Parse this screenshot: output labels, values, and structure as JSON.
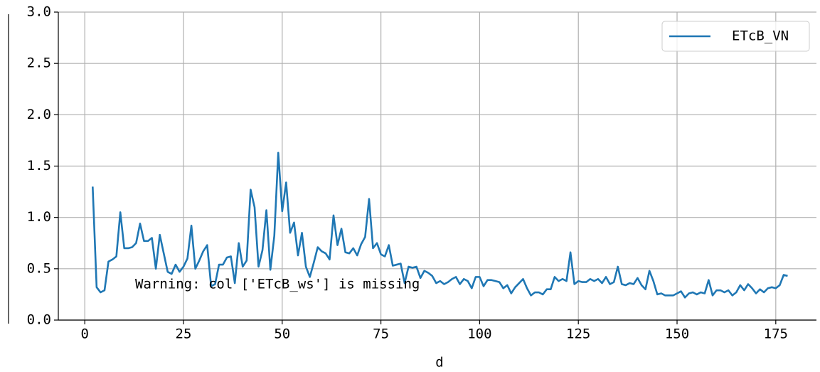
{
  "chart_data": {
    "type": "line",
    "xlabel": "d",
    "annotation": "Warning: col ['ETcB_ws'] is missing",
    "x": [
      2,
      3,
      4,
      5,
      6,
      7,
      8,
      9,
      10,
      11,
      12,
      13,
      14,
      15,
      16,
      17,
      18,
      19,
      20,
      21,
      22,
      23,
      24,
      25,
      26,
      27,
      28,
      29,
      30,
      31,
      32,
      33,
      34,
      35,
      36,
      37,
      38,
      39,
      40,
      41,
      42,
      43,
      44,
      45,
      46,
      47,
      48,
      49,
      50,
      51,
      52,
      53,
      54,
      55,
      56,
      57,
      58,
      59,
      60,
      61,
      62,
      63,
      64,
      65,
      66,
      67,
      68,
      69,
      70,
      71,
      72,
      73,
      74,
      75,
      76,
      77,
      78,
      79,
      80,
      81,
      82,
      83,
      84,
      85,
      86,
      87,
      88,
      89,
      90,
      91,
      92,
      93,
      94,
      95,
      96,
      97,
      98,
      99,
      100,
      101,
      102,
      103,
      104,
      105,
      106,
      107,
      108,
      109,
      110,
      111,
      112,
      113,
      114,
      115,
      116,
      117,
      118,
      119,
      120,
      121,
      122,
      123,
      124,
      125,
      126,
      127,
      128,
      129,
      130,
      131,
      132,
      133,
      134,
      135,
      136,
      137,
      138,
      139,
      140,
      141,
      142,
      143,
      144,
      145,
      146,
      147,
      148,
      149,
      150,
      151,
      152,
      153,
      154,
      155,
      156,
      157,
      158,
      159,
      160,
      161,
      162,
      163,
      164,
      165,
      166,
      167,
      168,
      169,
      170,
      171,
      172,
      173,
      174,
      175,
      176,
      177,
      178
    ],
    "series": [
      {
        "name": "ETcB_VN",
        "color": "#1f77b4",
        "values": [
          1.3,
          0.32,
          0.27,
          0.29,
          0.57,
          0.59,
          0.62,
          1.05,
          0.7,
          0.7,
          0.71,
          0.75,
          0.94,
          0.77,
          0.77,
          0.8,
          0.5,
          0.83,
          0.65,
          0.47,
          0.45,
          0.54,
          0.47,
          0.52,
          0.6,
          0.92,
          0.5,
          0.58,
          0.67,
          0.73,
          0.33,
          0.35,
          0.54,
          0.54,
          0.61,
          0.62,
          0.36,
          0.75,
          0.52,
          0.58,
          1.27,
          1.1,
          0.52,
          0.68,
          1.07,
          0.49,
          0.82,
          1.63,
          1.06,
          1.34,
          0.85,
          0.95,
          0.63,
          0.85,
          0.52,
          0.42,
          0.56,
          0.71,
          0.67,
          0.65,
          0.59,
          1.02,
          0.73,
          0.89,
          0.66,
          0.65,
          0.7,
          0.63,
          0.74,
          0.81,
          1.18,
          0.7,
          0.75,
          0.64,
          0.62,
          0.73,
          0.53,
          0.54,
          0.55,
          0.36,
          0.52,
          0.51,
          0.52,
          0.41,
          0.48,
          0.46,
          0.43,
          0.36,
          0.38,
          0.35,
          0.37,
          0.4,
          0.42,
          0.35,
          0.4,
          0.38,
          0.31,
          0.42,
          0.42,
          0.33,
          0.39,
          0.39,
          0.38,
          0.37,
          0.31,
          0.34,
          0.26,
          0.32,
          0.36,
          0.4,
          0.31,
          0.24,
          0.27,
          0.27,
          0.25,
          0.3,
          0.3,
          0.42,
          0.38,
          0.4,
          0.38,
          0.66,
          0.35,
          0.38,
          0.37,
          0.37,
          0.4,
          0.38,
          0.4,
          0.36,
          0.42,
          0.35,
          0.37,
          0.52,
          0.35,
          0.34,
          0.36,
          0.35,
          0.41,
          0.34,
          0.3,
          0.48,
          0.38,
          0.25,
          0.26,
          0.24,
          0.24,
          0.24,
          0.26,
          0.28,
          0.22,
          0.26,
          0.27,
          0.25,
          0.27,
          0.26,
          0.39,
          0.24,
          0.29,
          0.29,
          0.27,
          0.29,
          0.24,
          0.27,
          0.34,
          0.29,
          0.35,
          0.31,
          0.26,
          0.3,
          0.27,
          0.31,
          0.32,
          0.31,
          0.34,
          0.44,
          0.43
        ]
      }
    ],
    "xlim": [
      -6.7,
      185.3
    ],
    "ylim": [
      0,
      3
    ],
    "xticks": [
      0,
      25,
      50,
      75,
      100,
      125,
      150,
      175
    ],
    "yticks": [
      {
        "value": 0,
        "label": "0.0"
      },
      0.5,
      {
        "value": 1,
        "label": "1.0"
      },
      1.5,
      {
        "value": 2,
        "label": "2.0"
      },
      2.5,
      {
        "value": 3,
        "label": "3.0"
      }
    ],
    "grid": true,
    "legend": "upper right"
  }
}
